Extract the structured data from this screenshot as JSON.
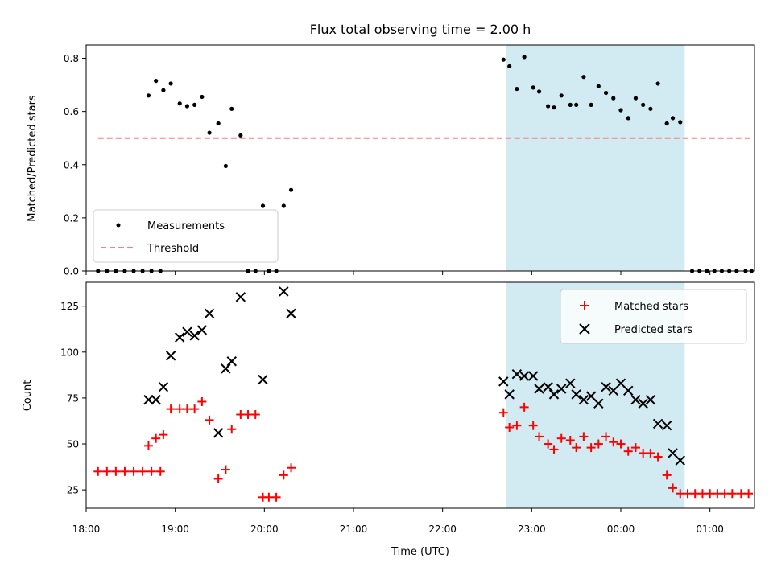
{
  "chart_data": [
    {
      "type": "scatter",
      "title": "Flux total observing time = 2.00 h",
      "ylabel": "Matched/Predicted stars",
      "xlim": [
        "18:00",
        "01:30"
      ],
      "ylim": [
        0,
        0.85
      ],
      "yticks": [
        "0.0",
        "0.2",
        "0.4",
        "0.6",
        "0.8"
      ],
      "highlight_span": [
        "22:43",
        "00:43"
      ],
      "highlight_color": "#add8e6",
      "series": [
        {
          "name": "Measurements",
          "color": "#000000",
          "marker": "dot",
          "points": [
            [
              "18:08",
              0.0
            ],
            [
              "18:14",
              0.0
            ],
            [
              "18:20",
              0.0
            ],
            [
              "18:26",
              0.0
            ],
            [
              "18:32",
              0.0
            ],
            [
              "18:38",
              0.0
            ],
            [
              "18:44",
              0.0
            ],
            [
              "18:50",
              0.0
            ],
            [
              "18:42",
              0.66
            ],
            [
              "18:47",
              0.715
            ],
            [
              "18:52",
              0.68
            ],
            [
              "18:57",
              0.705
            ],
            [
              "19:03",
              0.63
            ],
            [
              "19:08",
              0.62
            ],
            [
              "19:13",
              0.625
            ],
            [
              "19:18",
              0.655
            ],
            [
              "19:23",
              0.52
            ],
            [
              "19:29",
              0.555
            ],
            [
              "19:34",
              0.395
            ],
            [
              "19:38",
              0.61
            ],
            [
              "19:44",
              0.51
            ],
            [
              "19:49",
              0.0
            ],
            [
              "19:54",
              0.0
            ],
            [
              "19:59",
              0.245
            ],
            [
              "20:03",
              0.0
            ],
            [
              "20:08",
              0.0
            ],
            [
              "20:13",
              0.245
            ],
            [
              "20:18",
              0.305
            ],
            [
              "22:41",
              0.795
            ],
            [
              "22:45",
              0.77
            ],
            [
              "22:50",
              0.685
            ],
            [
              "22:55",
              0.805
            ],
            [
              "23:01",
              0.69
            ],
            [
              "23:05",
              0.675
            ],
            [
              "23:11",
              0.62
            ],
            [
              "23:15",
              0.615
            ],
            [
              "23:20",
              0.66
            ],
            [
              "23:26",
              0.625
            ],
            [
              "23:30",
              0.625
            ],
            [
              "23:35",
              0.73
            ],
            [
              "23:40",
              0.625
            ],
            [
              "23:45",
              0.695
            ],
            [
              "23:50",
              0.67
            ],
            [
              "23:55",
              0.65
            ],
            [
              "00:00",
              0.605
            ],
            [
              "00:05",
              0.575
            ],
            [
              "00:10",
              0.65
            ],
            [
              "00:15",
              0.625
            ],
            [
              "00:20",
              0.61
            ],
            [
              "00:25",
              0.705
            ],
            [
              "00:31",
              0.555
            ],
            [
              "00:35",
              0.575
            ],
            [
              "00:40",
              0.56
            ],
            [
              "00:48",
              0.0
            ],
            [
              "00:53",
              0.0
            ],
            [
              "00:58",
              0.0
            ],
            [
              "01:03",
              0.0
            ],
            [
              "01:08",
              0.0
            ],
            [
              "01:13",
              0.0
            ],
            [
              "01:18",
              0.0
            ],
            [
              "01:24",
              0.0
            ],
            [
              "01:28",
              0.0
            ]
          ]
        },
        {
          "name": "Threshold",
          "color": "#ff7f7f",
          "style": "dashed",
          "points": [
            [
              "18:08",
              0.5
            ],
            [
              "01:28",
              0.5
            ]
          ]
        }
      ],
      "legend": "lower-left"
    },
    {
      "type": "scatter",
      "xlabel": "Time (UTC)",
      "ylabel": "Count",
      "xlim": [
        "18:00",
        "01:30"
      ],
      "ylim": [
        15,
        138
      ],
      "xticks": [
        "18:00",
        "19:00",
        "20:00",
        "21:00",
        "22:00",
        "23:00",
        "00:00",
        "01:00"
      ],
      "yticks": [
        "25",
        "50",
        "75",
        "100",
        "125"
      ],
      "highlight_span": [
        "22:43",
        "00:43"
      ],
      "highlight_color": "#add8e6",
      "series": [
        {
          "name": "Matched stars",
          "color": "#ff0000",
          "marker": "plus",
          "points": [
            [
              "18:08",
              35
            ],
            [
              "18:14",
              35
            ],
            [
              "18:20",
              35
            ],
            [
              "18:26",
              35
            ],
            [
              "18:32",
              35
            ],
            [
              "18:38",
              35
            ],
            [
              "18:44",
              35
            ],
            [
              "18:50",
              35
            ],
            [
              "18:42",
              49
            ],
            [
              "18:47",
              53
            ],
            [
              "18:52",
              55
            ],
            [
              "18:57",
              69
            ],
            [
              "19:03",
              69
            ],
            [
              "19:08",
              69
            ],
            [
              "19:13",
              69
            ],
            [
              "19:18",
              73
            ],
            [
              "19:23",
              63
            ],
            [
              "19:29",
              31
            ],
            [
              "19:34",
              36
            ],
            [
              "19:38",
              58
            ],
            [
              "19:44",
              66
            ],
            [
              "19:49",
              66
            ],
            [
              "19:54",
              66
            ],
            [
              "19:59",
              21
            ],
            [
              "20:03",
              21
            ],
            [
              "20:08",
              21
            ],
            [
              "20:13",
              33
            ],
            [
              "20:18",
              37
            ],
            [
              "22:41",
              67
            ],
            [
              "22:45",
              59
            ],
            [
              "22:50",
              60
            ],
            [
              "22:55",
              70
            ],
            [
              "23:01",
              60
            ],
            [
              "23:05",
              54
            ],
            [
              "23:11",
              50
            ],
            [
              "23:15",
              47
            ],
            [
              "23:20",
              53
            ],
            [
              "23:26",
              52
            ],
            [
              "23:30",
              48
            ],
            [
              "23:35",
              54
            ],
            [
              "23:40",
              48
            ],
            [
              "23:45",
              50
            ],
            [
              "23:50",
              54
            ],
            [
              "23:55",
              51
            ],
            [
              "00:00",
              50
            ],
            [
              "00:05",
              46
            ],
            [
              "00:10",
              48
            ],
            [
              "00:15",
              45
            ],
            [
              "00:20",
              45
            ],
            [
              "00:25",
              43
            ],
            [
              "00:31",
              33
            ],
            [
              "00:35",
              26
            ],
            [
              "00:40",
              23
            ],
            [
              "00:45",
              23
            ],
            [
              "00:50",
              23
            ],
            [
              "00:55",
              23
            ],
            [
              "01:00",
              23
            ],
            [
              "01:05",
              23
            ],
            [
              "01:10",
              23
            ],
            [
              "01:15",
              23
            ],
            [
              "01:21",
              23
            ],
            [
              "01:26",
              23
            ]
          ]
        },
        {
          "name": "Predicted stars",
          "color": "#000000",
          "marker": "x",
          "points": [
            [
              "18:42",
              74
            ],
            [
              "18:47",
              74
            ],
            [
              "18:52",
              81
            ],
            [
              "18:57",
              98
            ],
            [
              "19:03",
              108
            ],
            [
              "19:08",
              111
            ],
            [
              "19:13",
              109
            ],
            [
              "19:18",
              112
            ],
            [
              "19:23",
              121
            ],
            [
              "19:29",
              56
            ],
            [
              "19:34",
              91
            ],
            [
              "19:38",
              95
            ],
            [
              "19:44",
              130
            ],
            [
              "19:59",
              85
            ],
            [
              "20:13",
              133
            ],
            [
              "20:18",
              121
            ],
            [
              "22:41",
              84
            ],
            [
              "22:45",
              77
            ],
            [
              "22:50",
              88
            ],
            [
              "22:55",
              87
            ],
            [
              "23:01",
              87
            ],
            [
              "23:05",
              80
            ],
            [
              "23:11",
              81
            ],
            [
              "23:15",
              77
            ],
            [
              "23:20",
              80
            ],
            [
              "23:26",
              83
            ],
            [
              "23:30",
              77
            ],
            [
              "23:35",
              74
            ],
            [
              "23:40",
              76
            ],
            [
              "23:45",
              72
            ],
            [
              "23:50",
              81
            ],
            [
              "23:55",
              79
            ],
            [
              "00:00",
              83
            ],
            [
              "00:05",
              79
            ],
            [
              "00:10",
              74
            ],
            [
              "00:15",
              72
            ],
            [
              "00:20",
              74
            ],
            [
              "00:25",
              61
            ],
            [
              "00:31",
              60
            ],
            [
              "00:35",
              45
            ],
            [
              "00:40",
              41
            ]
          ]
        }
      ],
      "legend": "upper-right"
    }
  ]
}
